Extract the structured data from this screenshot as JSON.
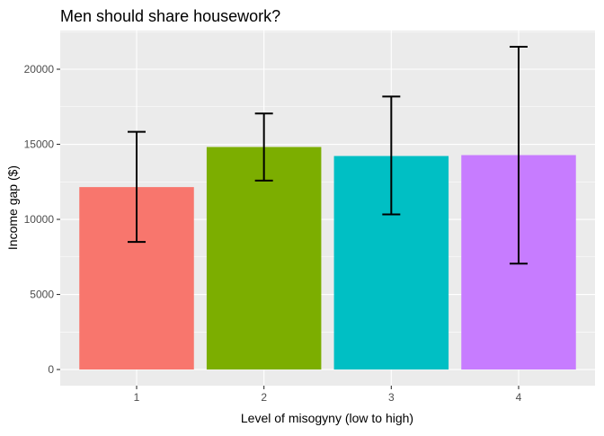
{
  "chart_data": {
    "type": "bar",
    "title": "Men should share housework?",
    "xlabel": "Level of misogyny (low to high)",
    "ylabel": "Income gap ($)",
    "categories": [
      "1",
      "2",
      "3",
      "4"
    ],
    "values": [
      12150,
      14820,
      14220,
      14280
    ],
    "error_low": [
      8500,
      12580,
      10330,
      7050
    ],
    "error_high": [
      15830,
      17050,
      18180,
      21500
    ],
    "colors": [
      "#F8766D",
      "#7CAE00",
      "#00BFC4",
      "#C77CFF"
    ],
    "y_ticks": [
      0,
      5000,
      10000,
      15000,
      20000
    ],
    "y_tick_labels": [
      "0",
      "5000",
      "10000",
      "15000",
      "20000"
    ],
    "ylim": [
      -1075,
      22575
    ],
    "grid": true,
    "panel_background": "#EBEBEB",
    "grid_color": "#FFFFFF",
    "legend": "none"
  }
}
